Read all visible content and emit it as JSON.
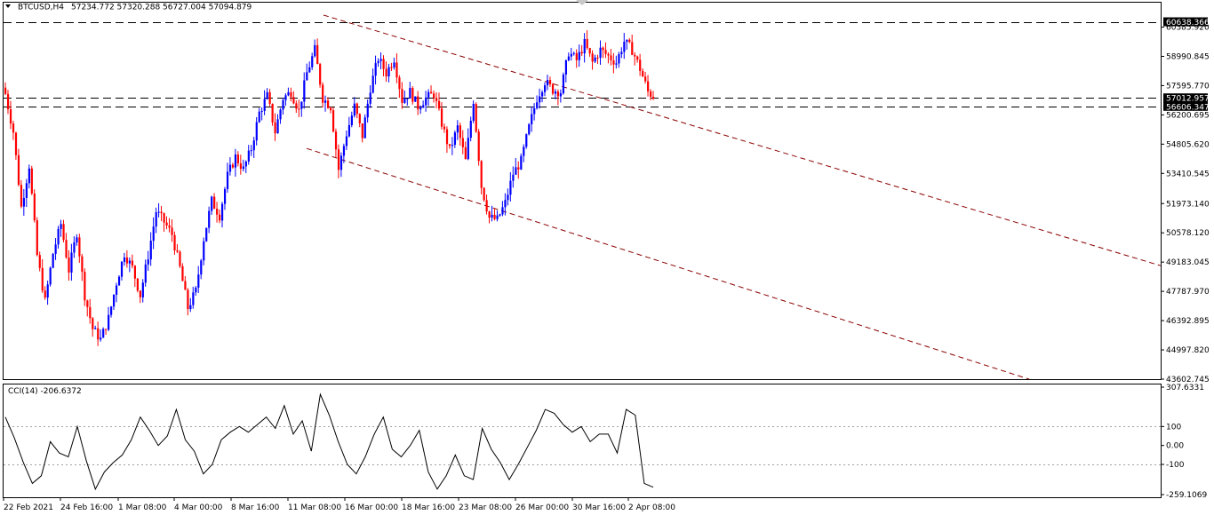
{
  "header": {
    "symbol": "BTCUSD,H4",
    "ohlc": "57234.772 57320.288 56727.004 57094.879"
  },
  "indicator": {
    "label": "CCI(14) -206.6372"
  },
  "chart_data": [
    {
      "type": "candlestick",
      "ylim": [
        43602.745,
        61550
      ],
      "y_ticks": [
        "60385.920",
        "58990.845",
        "57595.770",
        "56200.695",
        "54805.620",
        "53410.545",
        "51973.140",
        "50578.120",
        "49183.045",
        "47787.970",
        "46392.895",
        "44997.820",
        "43602.745"
      ],
      "price_labels": [
        {
          "text": "60638.366",
          "value": 60638.366
        },
        {
          "text": "57012.957",
          "value": 57012.957
        },
        {
          "text": "56606.347",
          "value": 56606.347
        }
      ],
      "horizontal_lines": [
        60638.366,
        57012.957,
        56606.347
      ],
      "x_labels": [
        "22 Feb 2021",
        "24 Feb 16:00",
        "1 Mar 08:00",
        "4 Mar 00:00",
        "8 Mar 16:00",
        "11 Mar 08:00",
        "16 Mar 00:00",
        "18 Mar 16:00",
        "23 Mar 08:00",
        "26 Mar 00:00",
        "30 Mar 16:00",
        "2 Apr 08:00"
      ],
      "trend_channel": {
        "upper": [
          [
            364,
            60958
          ],
          [
            1306,
            49013
          ]
        ],
        "lower": [
          [
            345,
            54600
          ],
          [
            1158,
            43602.745
          ]
        ]
      },
      "colors": {
        "up": "#0000ff",
        "down": "#ff0000",
        "trend": "#8b0000",
        "grid": "#000000"
      },
      "close_path": [
        {
          "i": 0,
          "v": 57200
        },
        {
          "i": 3,
          "v": 55400
        },
        {
          "i": 6,
          "v": 51800
        },
        {
          "i": 9,
          "v": 53800
        },
        {
          "i": 12,
          "v": 49500
        },
        {
          "i": 15,
          "v": 47300
        },
        {
          "i": 18,
          "v": 49600
        },
        {
          "i": 21,
          "v": 51000
        },
        {
          "i": 24,
          "v": 48800
        },
        {
          "i": 27,
          "v": 50600
        },
        {
          "i": 30,
          "v": 47600
        },
        {
          "i": 33,
          "v": 46000
        },
        {
          "i": 36,
          "v": 45500
        },
        {
          "i": 39,
          "v": 46500
        },
        {
          "i": 42,
          "v": 48200
        },
        {
          "i": 45,
          "v": 49600
        },
        {
          "i": 48,
          "v": 48900
        },
        {
          "i": 51,
          "v": 47600
        },
        {
          "i": 54,
          "v": 49500
        },
        {
          "i": 57,
          "v": 51600
        },
        {
          "i": 60,
          "v": 51100
        },
        {
          "i": 63,
          "v": 50500
        },
        {
          "i": 66,
          "v": 48900
        },
        {
          "i": 69,
          "v": 47000
        },
        {
          "i": 72,
          "v": 47800
        },
        {
          "i": 75,
          "v": 50300
        },
        {
          "i": 78,
          "v": 52100
        },
        {
          "i": 81,
          "v": 51400
        },
        {
          "i": 84,
          "v": 53300
        },
        {
          "i": 87,
          "v": 54200
        },
        {
          "i": 90,
          "v": 53600
        },
        {
          "i": 93,
          "v": 54600
        },
        {
          "i": 96,
          "v": 56300
        },
        {
          "i": 99,
          "v": 57100
        },
        {
          "i": 102,
          "v": 55400
        },
        {
          "i": 105,
          "v": 57000
        },
        {
          "i": 108,
          "v": 57300
        },
        {
          "i": 111,
          "v": 56400
        },
        {
          "i": 114,
          "v": 58200
        },
        {
          "i": 117,
          "v": 59300
        },
        {
          "i": 120,
          "v": 57000
        },
        {
          "i": 123,
          "v": 56600
        },
        {
          "i": 126,
          "v": 53600
        },
        {
          "i": 129,
          "v": 55300
        },
        {
          "i": 132,
          "v": 56600
        },
        {
          "i": 135,
          "v": 55200
        },
        {
          "i": 138,
          "v": 57500
        },
        {
          "i": 141,
          "v": 58900
        },
        {
          "i": 144,
          "v": 58200
        },
        {
          "i": 147,
          "v": 58900
        },
        {
          "i": 150,
          "v": 56900
        },
        {
          "i": 153,
          "v": 57300
        },
        {
          "i": 156,
          "v": 56600
        },
        {
          "i": 159,
          "v": 57000
        },
        {
          "i": 162,
          "v": 57200
        },
        {
          "i": 165,
          "v": 55800
        },
        {
          "i": 168,
          "v": 54500
        },
        {
          "i": 171,
          "v": 55600
        },
        {
          "i": 174,
          "v": 54000
        },
        {
          "i": 177,
          "v": 56900
        },
        {
          "i": 180,
          "v": 52800
        },
        {
          "i": 183,
          "v": 51300
        },
        {
          "i": 186,
          "v": 51200
        },
        {
          "i": 189,
          "v": 52000
        },
        {
          "i": 192,
          "v": 53400
        },
        {
          "i": 195,
          "v": 54000
        },
        {
          "i": 198,
          "v": 55600
        },
        {
          "i": 201,
          "v": 57000
        },
        {
          "i": 204,
          "v": 57800
        },
        {
          "i": 207,
          "v": 57400
        },
        {
          "i": 210,
          "v": 57300
        },
        {
          "i": 213,
          "v": 59200
        },
        {
          "i": 216,
          "v": 58800
        },
        {
          "i": 219,
          "v": 59600
        },
        {
          "i": 222,
          "v": 58700
        },
        {
          "i": 225,
          "v": 59300
        },
        {
          "i": 228,
          "v": 59000
        },
        {
          "i": 231,
          "v": 58700
        },
        {
          "i": 234,
          "v": 59700
        },
        {
          "i": 237,
          "v": 59300
        },
        {
          "i": 240,
          "v": 58400
        },
        {
          "i": 243,
          "v": 57300
        },
        {
          "i": 245,
          "v": 57095
        }
      ]
    },
    {
      "type": "line",
      "name": "CCI(14)",
      "ylim": [
        -259.1069,
        307.6331
      ],
      "y_ticks": [
        "307.6331",
        "100",
        "0.00",
        "-100",
        "-259.1069"
      ],
      "levels": [
        100,
        -100
      ],
      "values": [
        150,
        40,
        -90,
        -200,
        -160,
        20,
        -40,
        -60,
        100,
        -80,
        -230,
        -140,
        -90,
        -50,
        30,
        150,
        80,
        0,
        50,
        190,
        30,
        -30,
        -150,
        -100,
        30,
        70,
        100,
        70,
        110,
        150,
        90,
        210,
        60,
        130,
        -30,
        270,
        160,
        20,
        -100,
        -150,
        -60,
        60,
        150,
        -20,
        -60,
        0,
        80,
        -140,
        -230,
        -160,
        -50,
        -160,
        -180,
        90,
        -20,
        -90,
        -180,
        -100,
        -10,
        80,
        190,
        170,
        110,
        70,
        100,
        20,
        60,
        60,
        -40,
        190,
        160,
        -200,
        -220
      ]
    }
  ]
}
